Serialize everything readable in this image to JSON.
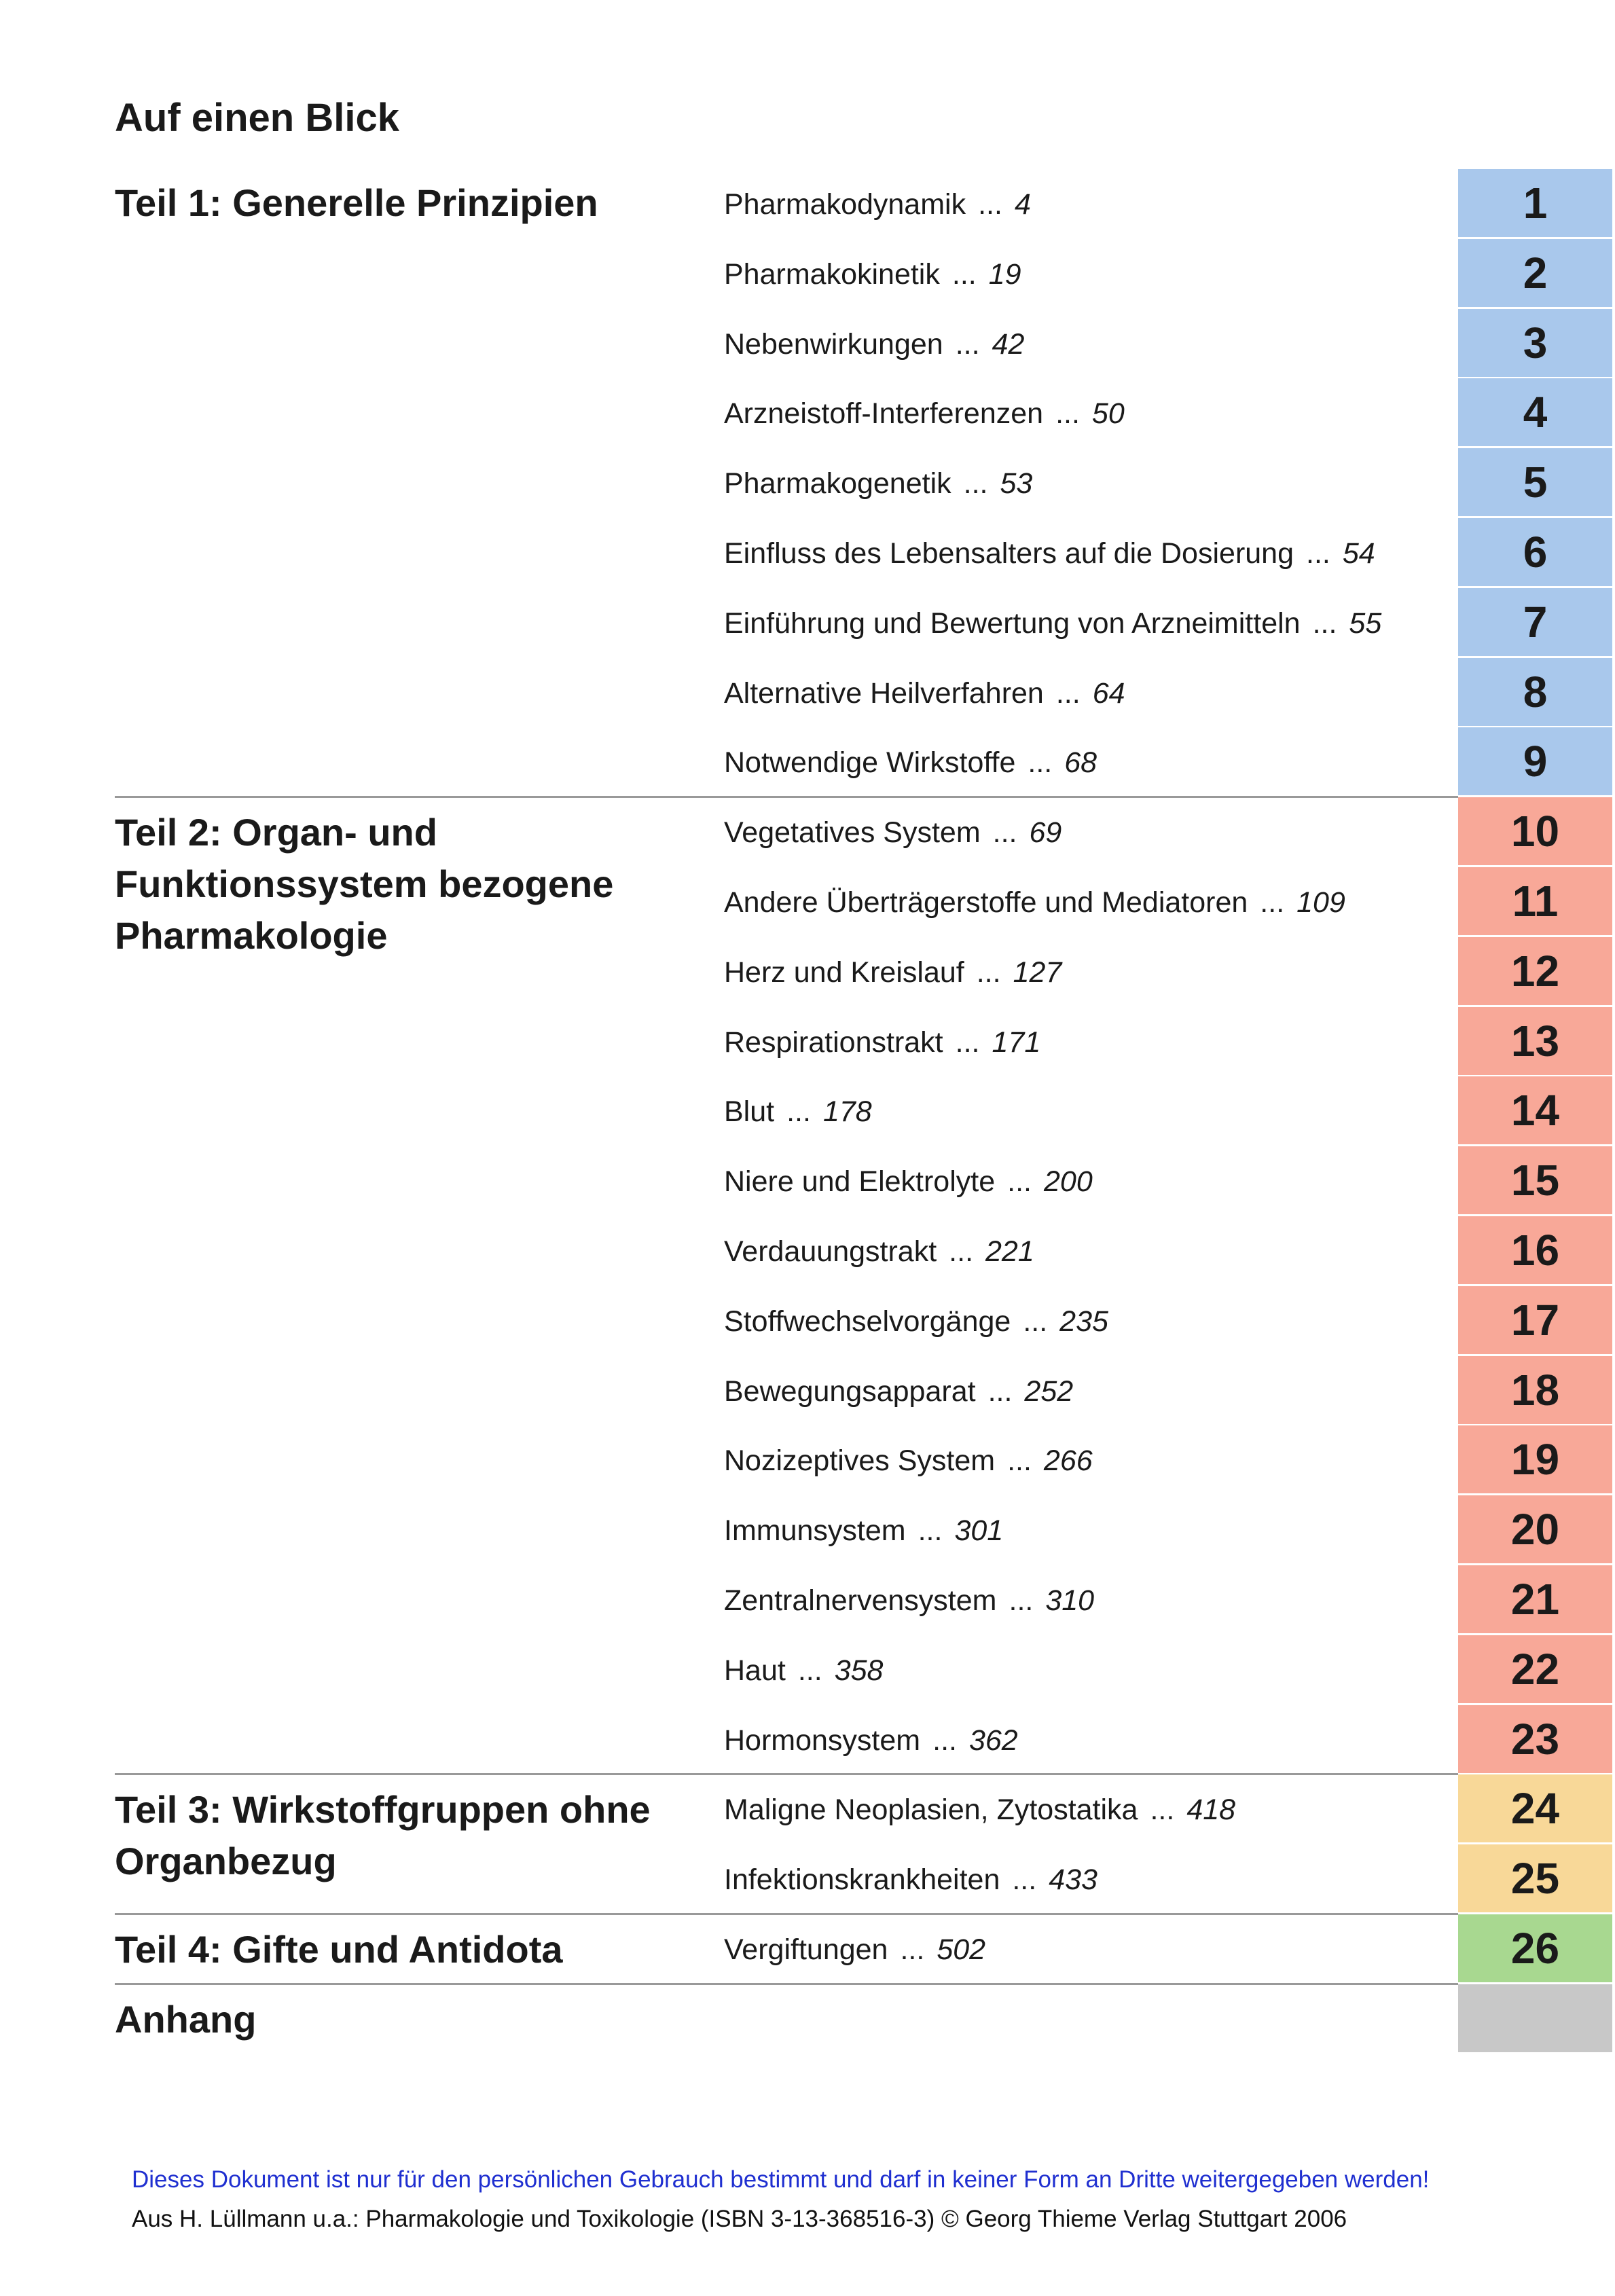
{
  "header": {
    "title": "Auf einen Blick"
  },
  "sections": [
    {
      "title_lines": [
        "Teil 1: Generelle Prinzipien"
      ],
      "color": "#a9c8ec",
      "entries": [
        {
          "title": "Pharmakodynamik",
          "page": "4",
          "number": "1"
        },
        {
          "title": "Pharmakokinetik",
          "page": "19",
          "number": "2"
        },
        {
          "title": "Nebenwirkungen",
          "page": "42",
          "number": "3"
        },
        {
          "title": "Arzneistoff-Interferenzen",
          "page": "50",
          "number": "4"
        },
        {
          "title": "Pharmakogenetik",
          "page": "53",
          "number": "5"
        },
        {
          "title": "Einfluss des Lebensalters auf die Dosierung",
          "page": "54",
          "number": "6"
        },
        {
          "title": "Einführung und Bewertung von Arzneimitteln",
          "page": "55",
          "number": "7"
        },
        {
          "title": "Alternative Heilverfahren",
          "page": "64",
          "number": "8"
        },
        {
          "title": "Notwendige Wirkstoffe",
          "page": "68",
          "number": "9"
        }
      ]
    },
    {
      "title_lines": [
        "Teil 2: Organ- und",
        "Funktionssystem bezogene",
        "Pharmakologie"
      ],
      "color": "#f8a898",
      "entries": [
        {
          "title": "Vegetatives System",
          "page": "69",
          "number": "10"
        },
        {
          "title": "Andere Überträgerstoffe und Mediatoren",
          "page": "109",
          "number": "11"
        },
        {
          "title": "Herz und Kreislauf",
          "page": "127",
          "number": "12"
        },
        {
          "title": "Respirationstrakt",
          "page": "171",
          "number": "13"
        },
        {
          "title": "Blut",
          "page": "178",
          "number": "14"
        },
        {
          "title": "Niere und Elektrolyte",
          "page": "200",
          "number": "15"
        },
        {
          "title": "Verdauungstrakt",
          "page": "221",
          "number": "16"
        },
        {
          "title": "Stoffwechselvorgänge",
          "page": "235",
          "number": "17"
        },
        {
          "title": "Bewegungsapparat",
          "page": "252",
          "number": "18"
        },
        {
          "title": "Nozizeptives System",
          "page": "266",
          "number": "19"
        },
        {
          "title": "Immunsystem",
          "page": "301",
          "number": "20"
        },
        {
          "title": "Zentralnervensystem",
          "page": "310",
          "number": "21"
        },
        {
          "title": "Haut",
          "page": "358",
          "number": "22"
        },
        {
          "title": "Hormonsystem",
          "page": "362",
          "number": "23"
        }
      ]
    },
    {
      "title_lines": [
        "Teil 3: Wirkstoffgruppen ohne",
        "Organbezug"
      ],
      "color": "#f8d898",
      "entries": [
        {
          "title": "Maligne Neoplasien, Zytostatika",
          "page": "418",
          "number": "24"
        },
        {
          "title": "Infektionskrankheiten",
          "page": "433",
          "number": "25"
        }
      ]
    },
    {
      "title_lines": [
        "Teil 4: Gifte und Antidota"
      ],
      "color": "#a8d890",
      "entries": [
        {
          "title": "Vergiftungen",
          "page": "502",
          "number": "26"
        }
      ]
    },
    {
      "title_lines": [
        "Anhang"
      ],
      "color": "#c8c8c8",
      "entries": []
    }
  ],
  "leader": "...",
  "footer": {
    "notice": "Dieses Dokument ist nur für den persönlichen Gebrauch bestimmt und darf in keiner Form an Dritte weitergegeben werden!",
    "source": "Aus H. Lüllmann u.a.: Pharmakologie und Toxikologie (ISBN 3-13-368516-3) © Georg Thieme Verlag Stuttgart 2006"
  }
}
